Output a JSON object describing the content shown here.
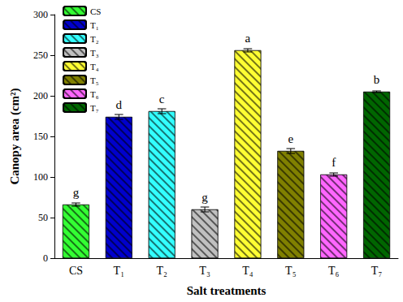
{
  "chart_data": {
    "type": "bar",
    "x_label": "Salt treatments",
    "y_label": "Canopy area (cm²)",
    "categories": [
      "CS",
      "T₁",
      "T₂",
      "T₃",
      "T₄",
      "T₅",
      "T₆",
      "T₇"
    ],
    "values": [
      66,
      174,
      181,
      60,
      256,
      132,
      103,
      205
    ],
    "errors": [
      2,
      3,
      3,
      3,
      2,
      3,
      2,
      1
    ],
    "annotations": [
      "g",
      "d",
      "c",
      "g",
      "a",
      "e",
      "f",
      "b"
    ],
    "colors": [
      "#33ff33",
      "#0000cc",
      "#33ffff",
      "#c0c0c0",
      "#ffff33",
      "#808000",
      "#ff66ff",
      "#006600"
    ],
    "ylim": [
      0,
      300
    ],
    "yticks": [
      0,
      50,
      100,
      150,
      200,
      250,
      300
    ],
    "grid": false,
    "legend": "upper left"
  }
}
